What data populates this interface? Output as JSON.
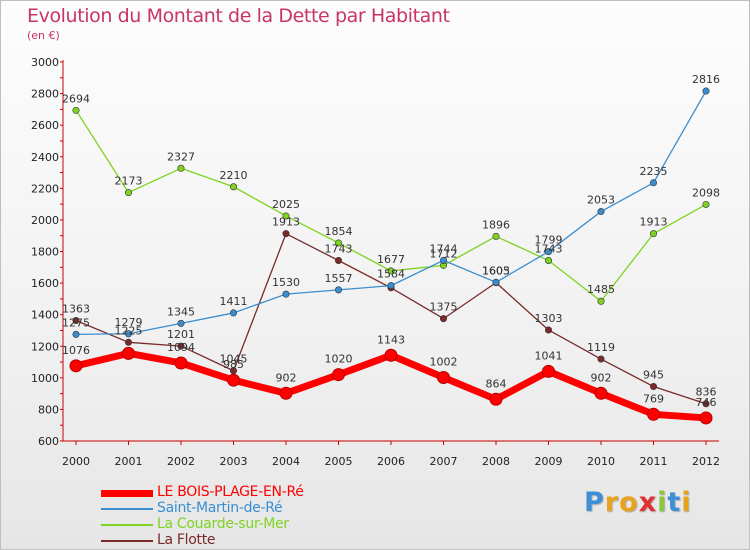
{
  "header": {
    "title": "Evolution du Montant de la Dette par Habitant",
    "subtitle": "(en €)"
  },
  "logo": {
    "text": "Proxiti"
  },
  "chart_data": {
    "type": "line",
    "title": "Evolution du Montant de la Dette par Habitant",
    "subtitle": "(en €)",
    "xlabel": "",
    "ylabel": "",
    "x": [
      "2000",
      "2001",
      "2002",
      "2003",
      "2004",
      "2005",
      "2006",
      "2007",
      "2008",
      "2009",
      "2010",
      "2011",
      "2012"
    ],
    "ylim": [
      600,
      3000
    ],
    "yticks": [
      600,
      800,
      1000,
      1200,
      1400,
      1600,
      1800,
      2000,
      2200,
      2400,
      2600,
      2800,
      3000
    ],
    "grid": false,
    "legend": "bottom-left",
    "series": [
      {
        "name": "LE BOIS-PLAGE-EN-Ré",
        "color": "#ff0000",
        "values": [
          1076,
          1155,
          1094,
          985,
          902,
          1020,
          1143,
          1002,
          864,
          1041,
          902,
          769,
          746
        ],
        "labels": [
          "1076",
          "",
          "1094",
          "985",
          "902",
          "1020",
          "1143",
          "1002",
          "864",
          "1041",
          "902",
          "769",
          "746"
        ]
      },
      {
        "name": "Saint-Martin-de-Ré",
        "color": "#3a8ecf",
        "values": [
          1275,
          1279,
          1345,
          1411,
          1530,
          1557,
          1584,
          1744,
          1605,
          1799,
          2053,
          2235,
          2816
        ],
        "labels": [
          "1275",
          "1279",
          "1345",
          "1411",
          "1530",
          "1557",
          "1584",
          "1744",
          "1605",
          "1799",
          "2053",
          "2235",
          "2816"
        ]
      },
      {
        "name": "La Couarde-sur-Mer",
        "color": "#7ed321",
        "values": [
          2694,
          2173,
          2327,
          2210,
          2025,
          1854,
          1677,
          1712,
          1896,
          1743,
          1485,
          1913,
          2098
        ],
        "labels": [
          "2694",
          "2173",
          "2327",
          "2210",
          "2025",
          "1854",
          "1677",
          "1712",
          "1896",
          "1743",
          "1485",
          "1913",
          "2098"
        ]
      },
      {
        "name": "La Flotte",
        "color": "#7a2a2a",
        "values": [
          1363,
          1225,
          1201,
          1045,
          1913,
          1743,
          1570,
          1375,
          1603,
          1303,
          1119,
          945,
          836
        ],
        "labels": [
          "1363",
          "1225",
          "1201",
          "1045",
          "1913",
          "1743",
          "",
          "1375",
          "1603",
          "1303",
          "1119",
          "945",
          "836"
        ]
      }
    ]
  }
}
